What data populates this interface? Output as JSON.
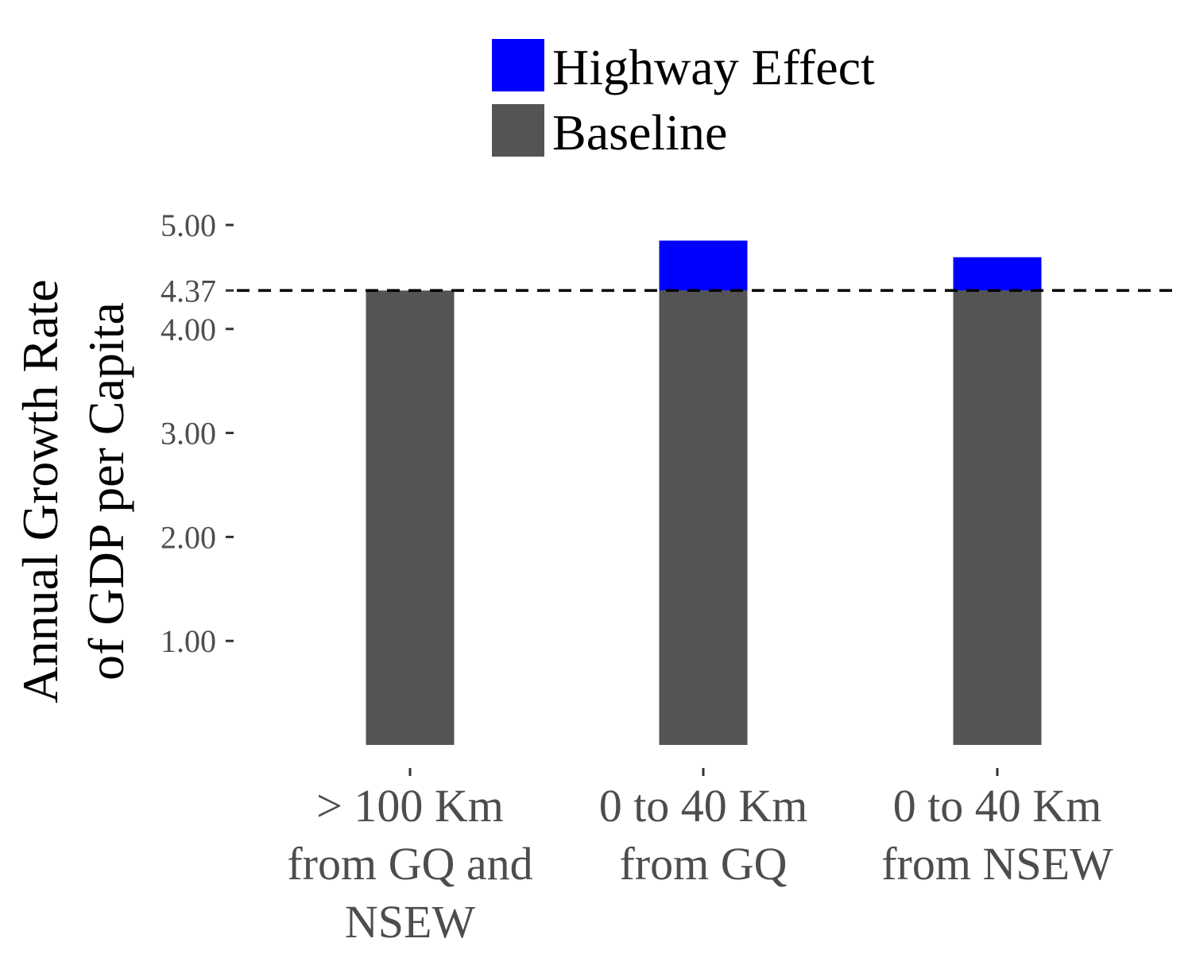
{
  "chart_data": {
    "type": "bar",
    "stacked": true,
    "title": "",
    "xlabel": "",
    "ylabel": [
      "Annual Growth Rate",
      "of GDP per Capita"
    ],
    "categories": [
      [
        "> 100 Km",
        "from GQ and",
        "NSEW"
      ],
      [
        "0 to 40 Km",
        "from GQ"
      ],
      [
        "0 to 40 Km",
        "from NSEW"
      ]
    ],
    "series": [
      {
        "name": "Baseline",
        "color": "#545454",
        "values": [
          4.37,
          4.37,
          4.37
        ]
      },
      {
        "name": "Highway Effect",
        "color": "#0000ff",
        "values": [
          0,
          0.48,
          0.32
        ]
      }
    ],
    "legend_order": [
      "Highway Effect",
      "Baseline"
    ],
    "legend_position": "top",
    "yticks": [
      "5.00",
      "4.37",
      "4.00",
      "3.00",
      "2.00",
      "1.00"
    ],
    "ylim": [
      0,
      5
    ],
    "reference_line": {
      "value": 4.37,
      "style": "dashed",
      "color": "#000000"
    },
    "grid": false
  }
}
